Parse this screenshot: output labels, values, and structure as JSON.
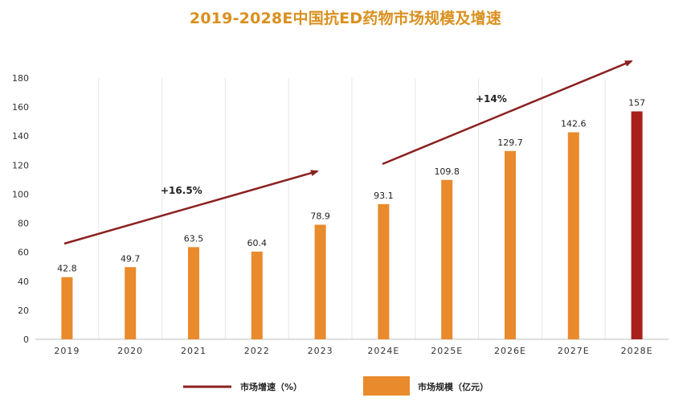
{
  "chart_data": {
    "type": "bar",
    "title": "2019-2028E中国抗ED药物市场规模及增速",
    "xlabel": "",
    "ylabel": "",
    "categories": [
      "2019",
      "2020",
      "2021",
      "2022",
      "2023",
      "2024E",
      "2025E",
      "2026E",
      "2027E",
      "2028E"
    ],
    "series": [
      {
        "name": "市场规模（亿元）",
        "values": [
          42.8,
          49.7,
          63.5,
          60.4,
          78.9,
          93.1,
          109.8,
          129.7,
          142.6,
          157
        ],
        "labels": [
          "42.8",
          "49.7",
          "63.5",
          "60.4",
          "78.9",
          "93.1",
          "109.8",
          "129.7",
          "142.6",
          "157"
        ],
        "color": "#e98a2c",
        "highlight_color": "#a91f1b",
        "highlight_index": 9
      }
    ],
    "ylim": [
      0,
      180
    ],
    "yticks": [
      0,
      20,
      40,
      60,
      80,
      100,
      120,
      140,
      160,
      180
    ],
    "grid": "vertical",
    "annotations": [
      {
        "text": "+16.5%",
        "period": "2019-2023",
        "type": "growth-arrow"
      },
      {
        "text": "+14%",
        "period": "2024E-2028E",
        "type": "growth-arrow"
      }
    ],
    "legend": {
      "placement": "bottom",
      "items": [
        {
          "label": "市场增速（%）",
          "type": "line",
          "color": "#8b2020"
        },
        {
          "label": "市场规模（亿元）",
          "type": "bar",
          "color": "#e98a2c"
        }
      ]
    }
  }
}
